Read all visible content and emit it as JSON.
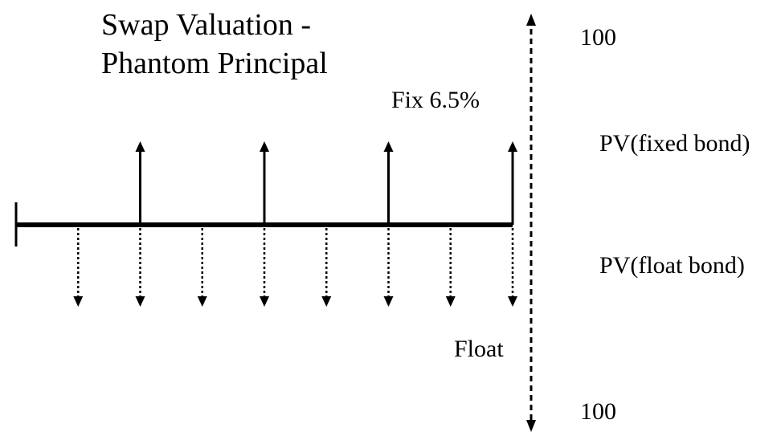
{
  "title": {
    "line1": "Swap Valuation -",
    "line2": "Phantom Principal"
  },
  "labels": {
    "fixed_leg": "Fix 6.5%",
    "floating_leg": "Float",
    "principal_top": "100",
    "principal_bottom": "100",
    "pv_fixed": "PV(fixed bond)",
    "pv_float": "PV(float bond)"
  },
  "cash_flows": {
    "fixed_payment_count": 4,
    "float_payment_count": 8
  }
}
